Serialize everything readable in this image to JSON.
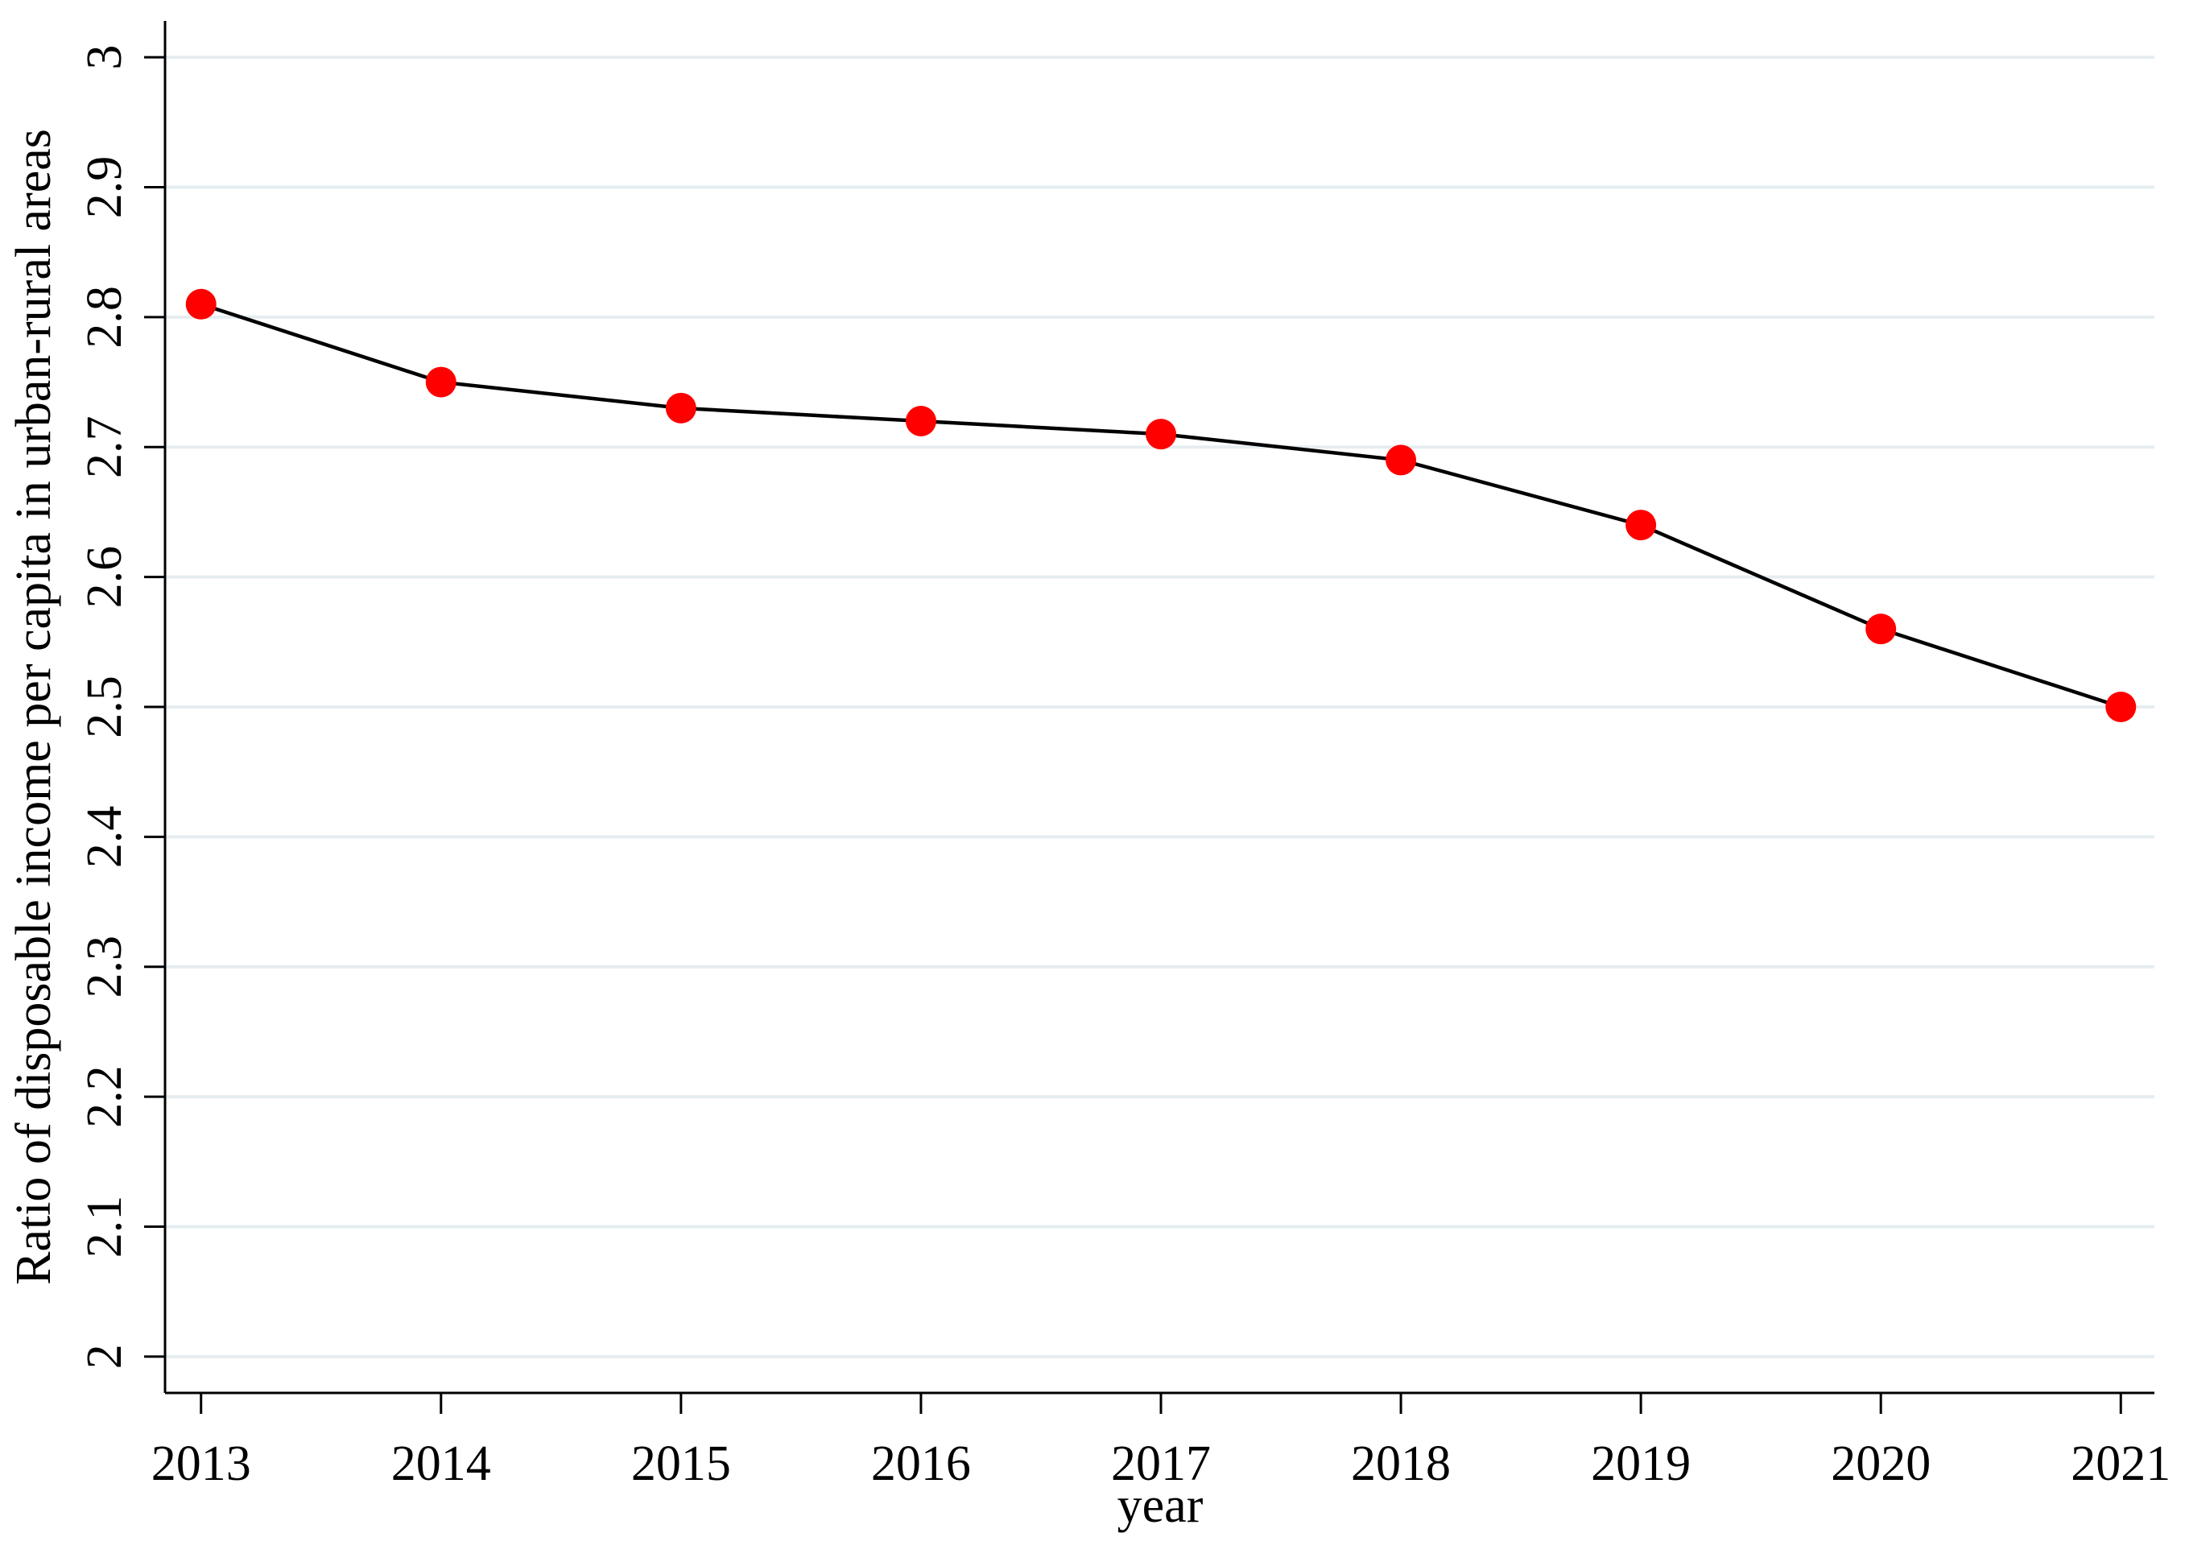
{
  "chart_data": {
    "type": "line",
    "x_label": "year",
    "y_label": "Ratio of disposable income per capita in urban-rural areas",
    "x": [
      2013,
      2014,
      2015,
      2016,
      2017,
      2018,
      2019,
      2020,
      2021
    ],
    "series": [
      {
        "color": "#ff0000",
        "line_color": "#000000",
        "values": [
          2.81,
          2.75,
          2.73,
          2.72,
          2.71,
          2.69,
          2.64,
          2.56,
          2.5
        ]
      }
    ],
    "xlim": [
      2012.85,
      2021.14
    ],
    "xticks": [
      2013,
      2014,
      2015,
      2016,
      2017,
      2018,
      2019,
      2020,
      2021
    ],
    "ylim": [
      1.972,
      3.028
    ],
    "yticks": [
      2,
      2.1,
      2.2,
      2.3,
      2.4,
      2.5,
      2.6,
      2.7,
      2.8,
      2.9,
      3
    ],
    "grid": true,
    "grid_color": "#e6edf1"
  }
}
